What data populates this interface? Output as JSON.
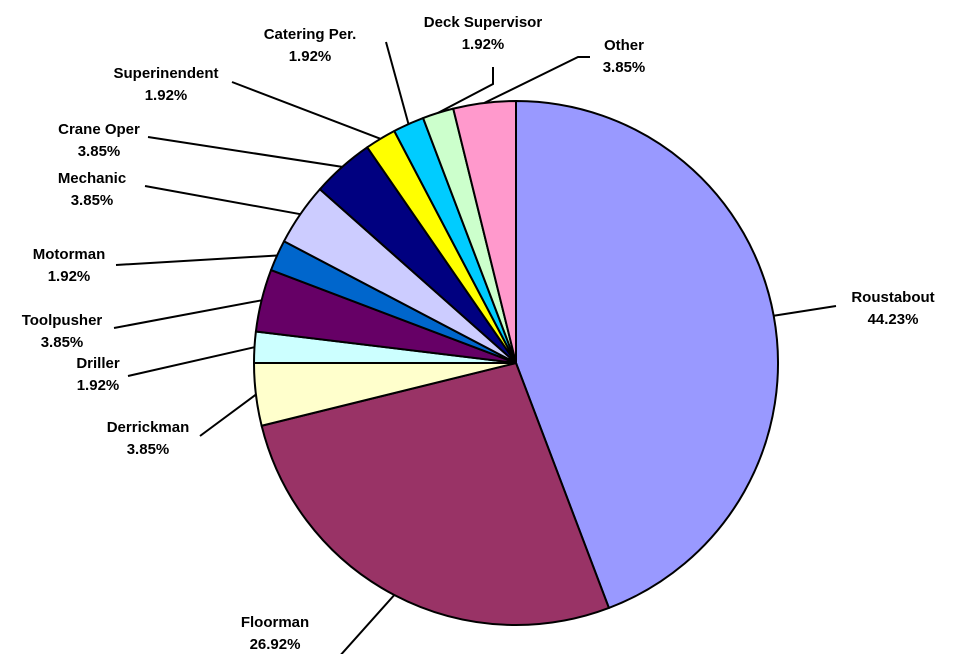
{
  "chart_data": {
    "type": "pie",
    "title": "",
    "start_angle_deg": 0,
    "direction": "clockwise",
    "slices": [
      {
        "label": "Roustabout",
        "value": 44.23,
        "value_label": "44.23%",
        "color": "#9999FF"
      },
      {
        "label": "Floorman",
        "value": 26.92,
        "value_label": "26.92%",
        "color": "#993366"
      },
      {
        "label": "Derrickman",
        "value": 3.85,
        "value_label": "3.85%",
        "color": "#FFFFCC"
      },
      {
        "label": "Driller",
        "value": 1.92,
        "value_label": "1.92%",
        "color": "#CCFFFF"
      },
      {
        "label": "Toolpusher",
        "value": 3.85,
        "value_label": "3.85%",
        "color": "#660066"
      },
      {
        "label": "Motorman",
        "value": 1.92,
        "value_label": "1.92%",
        "color": "#0066CC"
      },
      {
        "label": "Mechanic",
        "value": 3.85,
        "value_label": "3.85%",
        "color": "#CCCCFF"
      },
      {
        "label": "Crane Oper",
        "value": 3.85,
        "value_label": "3.85%",
        "color": "#000080"
      },
      {
        "label": "Superinendent",
        "value": 1.92,
        "value_label": "1.92%",
        "color": "#FFFF00"
      },
      {
        "label": "Catering Per.",
        "value": 1.92,
        "value_label": "1.92%",
        "color": "#00CCFF"
      },
      {
        "label": "Deck Supervisor",
        "value": 1.92,
        "value_label": "1.92%",
        "color": "#CCFFCC"
      },
      {
        "label": "Other",
        "value": 3.85,
        "value_label": "3.85%",
        "color": "#FF99CC"
      }
    ]
  }
}
